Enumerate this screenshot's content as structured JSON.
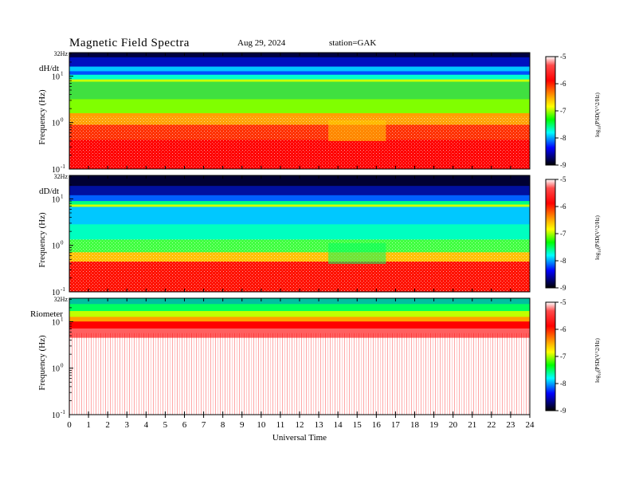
{
  "header": {
    "title": "Magnetic  Field  Spectra",
    "date": "Aug 29, 2024",
    "station": "station=GAK"
  },
  "colors": {
    "colormap": [
      "#ffffff",
      "#ff0000",
      "#ffff00",
      "#00ff00",
      "#00ffff",
      "#0000ff",
      "#000000"
    ]
  },
  "chart_data": [
    {
      "type": "heatmap",
      "panel_label": "dH/dt",
      "top_label": "32Hz",
      "ylabel": "Frequency  (Hz)",
      "y_ticks": [
        "10",
        "10",
        "10"
      ],
      "y_tick_exps": [
        "1",
        "0",
        "-1"
      ],
      "yscale": "log",
      "ylim": [
        0.1,
        32
      ],
      "xlim": [
        0,
        24
      ],
      "colorbar": {
        "label_prefix": "log",
        "label_sub": "10",
        "label_body": "(PSD(V^2/Hz)",
        "range": [
          -9,
          -5
        ],
        "ticks": [
          "-5",
          "-6",
          "-7",
          "-8",
          "-9"
        ]
      },
      "features": "Intense low-frequency power (<1 Hz) with a quieter minimum near 14-16 UT; blue/black band near 32 Hz; yellow line near 8 Hz"
    },
    {
      "type": "heatmap",
      "panel_label": "dD/dt",
      "top_label": "32Hz",
      "ylabel": "Frequency  (Hz)",
      "y_ticks": [
        "10",
        "10",
        "10"
      ],
      "y_tick_exps": [
        "1",
        "0",
        "-1"
      ],
      "yscale": "log",
      "ylim": [
        0.1,
        32
      ],
      "xlim": [
        0,
        24
      ],
      "colorbar": {
        "label_prefix": "log",
        "label_sub": "10",
        "label_body": "(PSD(V^2/Hz)",
        "range": [
          -9,
          -5
        ],
        "ticks": [
          "-5",
          "-6",
          "-7",
          "-8",
          "-9"
        ]
      },
      "features": "Dark band at top, cyan/blue region 1-8 Hz, red low-frequency power below ~0.5 Hz"
    },
    {
      "type": "heatmap",
      "panel_label": "Riometer",
      "top_label": "32Hz",
      "ylabel": "Frequency  (Hz)",
      "y_ticks": [
        "10",
        "10",
        "10"
      ],
      "y_tick_exps": [
        "1",
        "0",
        "-1"
      ],
      "yscale": "log",
      "ylim": [
        0.1,
        32
      ],
      "xlim": [
        0,
        24
      ],
      "colorbar": {
        "label_prefix": "log",
        "label_sub": "10",
        "label_body": "(PSD(V^2/Hz)",
        "range": [
          -9,
          -5
        ],
        "ticks": [
          "-5",
          "-6",
          "-7",
          "-8",
          "-9"
        ]
      },
      "features": "Green-to-red band from ~32 Hz down to ~5 Hz, mostly white below with sparse red speckle"
    }
  ],
  "xaxis": {
    "label": "Universal  Time",
    "ticks": [
      "0",
      "1",
      "2",
      "3",
      "4",
      "5",
      "6",
      "7",
      "8",
      "9",
      "10",
      "11",
      "12",
      "13",
      "14",
      "15",
      "16",
      "17",
      "18",
      "19",
      "20",
      "21",
      "22",
      "23",
      "24"
    ]
  }
}
